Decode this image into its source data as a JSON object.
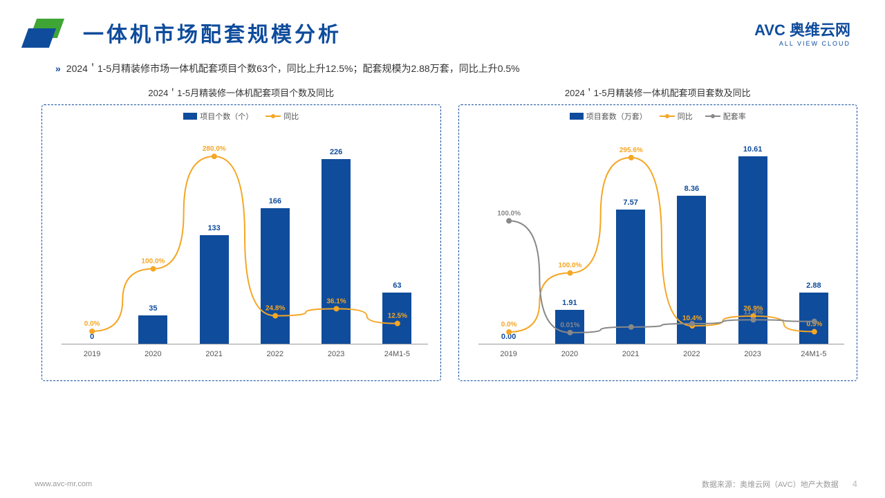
{
  "header": {
    "title": "一体机市场配套规模分析",
    "brand_cn": "AVC 奥维云网",
    "brand_en": "ALL VIEW CLOUD"
  },
  "summary": "2024＇1-5月精装修市场一体机配套项目个数63个，同比上升12.5%；配套规模为2.88万套，同比上升0.5%",
  "chart1": {
    "title": "2024＇1-5月精装修一体机配套项目个数及同比",
    "legend_bar": "项目个数（个）",
    "legend_line": "同比",
    "categories": [
      "2019",
      "2020",
      "2021",
      "2022",
      "2023",
      "24M1-5"
    ],
    "bar_values": [
      0,
      35,
      133,
      166,
      226,
      63
    ],
    "bar_labels": [
      "0",
      "35",
      "133",
      "166",
      "226",
      "63"
    ],
    "bar_max": 260,
    "line_values": [
      0,
      100.0,
      280.0,
      24.8,
      36.1,
      12.5
    ],
    "line_labels": [
      "0.0%",
      "100.0%",
      "280.0%",
      "24.8%",
      "36.1%",
      "12.5%"
    ],
    "line_min": -20,
    "line_max": 320,
    "bar_color": "#0f4c9c",
    "line_color": "#f5a623"
  },
  "chart2": {
    "title": "2024＇1-5月精装修一体机配套项目套数及同比",
    "legend_bar": "项目套数（万套）",
    "legend_line1": "同比",
    "legend_line2": "配套率",
    "categories": [
      "2019",
      "2020",
      "2021",
      "2022",
      "2023",
      "24M1-5"
    ],
    "bar_values": [
      0.0,
      1.91,
      7.57,
      8.36,
      10.61,
      2.88
    ],
    "bar_labels": [
      "0.00",
      "1.91",
      "7.57",
      "8.36",
      "10.61",
      "2.88"
    ],
    "bar_max": 12,
    "line1_values": [
      0.0,
      100.0,
      295.6,
      10.4,
      26.9,
      0.5
    ],
    "line1_labels": [
      "0.0%",
      "100.0%",
      "295.6%",
      "10.4%",
      "26.9%",
      "0.5%"
    ],
    "line2_values": [
      100.0,
      0.01,
      5,
      8,
      11.4,
      10
    ],
    "line2_labels": [
      "100.0%",
      "0.01%",
      "",
      "",
      "11.4%",
      ""
    ],
    "line_min": -20,
    "line_max": 340,
    "line1_color": "#f5a623",
    "line2_color": "#888888",
    "bar_color": "#0f4c9c"
  },
  "footer": {
    "url": "www.avc-mr.com",
    "source": "数据来源：奥维云网（AVC）地产大数据",
    "page": "4"
  }
}
